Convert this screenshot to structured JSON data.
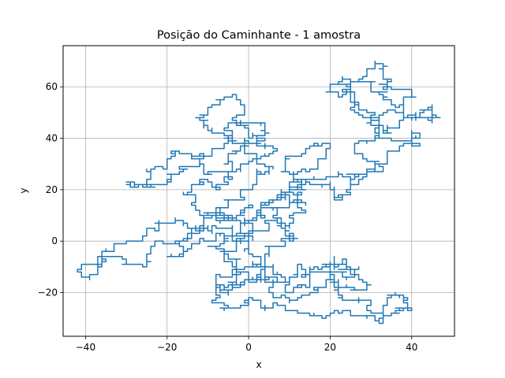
{
  "chart_data": {
    "type": "line",
    "title": "Posição do Caminhante - 1 amostra",
    "xlabel": "x",
    "ylabel": "y",
    "xlim": [
      -45.5,
      50.5
    ],
    "ylim": [
      -37,
      76
    ],
    "x_ticks": [
      -40,
      -20,
      0,
      20,
      40
    ],
    "y_ticks": [
      -20,
      0,
      20,
      40,
      60
    ],
    "x_tick_labels": [
      "−40",
      "−20",
      "0",
      "20",
      "40"
    ],
    "y_tick_labels": [
      "−20",
      "0",
      "20",
      "40",
      "60"
    ],
    "grid": true,
    "legend": "none",
    "series": [
      {
        "color": "#1f77b4",
        "style": "2D lattice random walk, unit steps (path approximated)",
        "waypoints": [
          [
            0,
            0
          ],
          [
            -4,
            6
          ],
          [
            -9,
            3
          ],
          [
            -14,
            5
          ],
          [
            -18,
            9
          ],
          [
            -22,
            7
          ],
          [
            -25,
            2
          ],
          [
            -30,
            0
          ],
          [
            -33,
            -4
          ],
          [
            -37,
            -9
          ],
          [
            -41,
            -14
          ],
          [
            -37,
            -10
          ],
          [
            -31,
            -6
          ],
          [
            -27,
            -9
          ],
          [
            -24,
            -5
          ],
          [
            -19,
            -1
          ],
          [
            -15,
            3
          ],
          [
            -11,
            8
          ],
          [
            -7,
            13
          ],
          [
            -3,
            10
          ],
          [
            1,
            14
          ],
          [
            -2,
            7
          ],
          [
            -6,
            2
          ],
          [
            -10,
            -2
          ],
          [
            -6,
            -7
          ],
          [
            -2,
            -12
          ],
          [
            -4,
            -18
          ],
          [
            -8,
            -23
          ],
          [
            -4,
            -26
          ],
          [
            0,
            -22
          ],
          [
            4,
            -27
          ],
          [
            9,
            -25
          ],
          [
            14,
            -28
          ],
          [
            19,
            -29
          ],
          [
            23,
            -27
          ],
          [
            27,
            -29
          ],
          [
            31,
            -31
          ],
          [
            36,
            -28
          ],
          [
            40,
            -26
          ],
          [
            38,
            -21
          ],
          [
            34,
            -25
          ],
          [
            30,
            -28
          ],
          [
            25,
            -23
          ],
          [
            22,
            -16
          ],
          [
            20,
            -10
          ],
          [
            23,
            -7
          ],
          [
            27,
            -11
          ],
          [
            24,
            -14
          ],
          [
            18,
            -12
          ],
          [
            13,
            -9
          ],
          [
            9,
            -14
          ],
          [
            6,
            -9
          ],
          [
            2,
            -13
          ],
          [
            4,
            -6
          ],
          [
            8,
            -2
          ],
          [
            12,
            1
          ],
          [
            9,
            6
          ],
          [
            6,
            10
          ],
          [
            10,
            13
          ],
          [
            13,
            18
          ],
          [
            10,
            22
          ],
          [
            14,
            27
          ],
          [
            17,
            31
          ],
          [
            19,
            36
          ],
          [
            16,
            38
          ],
          [
            12,
            33
          ],
          [
            9,
            28
          ],
          [
            11,
            23
          ],
          [
            14,
            20
          ],
          [
            18,
            24
          ],
          [
            22,
            27
          ],
          [
            25,
            22
          ],
          [
            28,
            26
          ],
          [
            31,
            30
          ],
          [
            34,
            34
          ],
          [
            38,
            37
          ],
          [
            42,
            38
          ],
          [
            40,
            42
          ],
          [
            35,
            40
          ],
          [
            32,
            44
          ],
          [
            30,
            50
          ],
          [
            27,
            54
          ],
          [
            25,
            59
          ],
          [
            28,
            63
          ],
          [
            29,
            67
          ],
          [
            31,
            70
          ],
          [
            33,
            64
          ],
          [
            37,
            59
          ],
          [
            40,
            56
          ],
          [
            38,
            52
          ],
          [
            34,
            50
          ],
          [
            30,
            46
          ],
          [
            33,
            42
          ],
          [
            37,
            46
          ],
          [
            41,
            50
          ],
          [
            44,
            52
          ],
          [
            45,
            46
          ],
          [
            42,
            48
          ],
          [
            38,
            52
          ],
          [
            35,
            55
          ],
          [
            31,
            58
          ],
          [
            27,
            62
          ],
          [
            23,
            64
          ],
          [
            20,
            61
          ],
          [
            22,
            56
          ],
          [
            26,
            52
          ],
          [
            30,
            48
          ],
          [
            32,
            42
          ],
          [
            29,
            38
          ],
          [
            26,
            34
          ],
          [
            30,
            31
          ],
          [
            33,
            28
          ],
          [
            29,
            25
          ],
          [
            25,
            22
          ],
          [
            21,
            18
          ],
          [
            17,
            22
          ],
          [
            13,
            24
          ],
          [
            9,
            19
          ],
          [
            5,
            14
          ],
          [
            2,
            10
          ],
          [
            -1,
            6
          ],
          [
            -5,
            8
          ],
          [
            -9,
            11
          ],
          [
            -13,
            14
          ],
          [
            -15,
            18
          ],
          [
            -12,
            22
          ],
          [
            -8,
            20
          ],
          [
            -4,
            24
          ],
          [
            -7,
            27
          ],
          [
            -11,
            30
          ],
          [
            -14,
            33
          ],
          [
            -17,
            35
          ],
          [
            -20,
            31
          ],
          [
            -23,
            28
          ],
          [
            -25,
            24
          ],
          [
            -21,
            22
          ],
          [
            -17,
            26
          ],
          [
            -13,
            29
          ],
          [
            -9,
            33
          ],
          [
            -6,
            36
          ],
          [
            -3,
            39
          ],
          [
            -7,
            42
          ],
          [
            -10,
            45
          ],
          [
            -12,
            48
          ],
          [
            -9,
            52
          ],
          [
            -6,
            55
          ],
          [
            -4,
            57
          ],
          [
            -2,
            53
          ],
          [
            -1,
            49
          ],
          [
            2,
            46
          ],
          [
            4,
            42
          ],
          [
            2,
            38
          ],
          [
            -2,
            35
          ],
          [
            -5,
            31
          ],
          [
            -3,
            27
          ],
          [
            0,
            30
          ],
          [
            3,
            33
          ],
          [
            6,
            36
          ],
          [
            4,
            40
          ],
          [
            0,
            44
          ],
          [
            -3,
            46
          ],
          [
            -6,
            43
          ],
          [
            -4,
            38
          ],
          [
            -1,
            34
          ],
          [
            2,
            30
          ],
          [
            5,
            26
          ],
          [
            2,
            22
          ],
          [
            -2,
            18
          ],
          [
            -5,
            14
          ],
          [
            -8,
            10
          ],
          [
            -11,
            6
          ],
          [
            -14,
            2
          ],
          [
            -17,
            -2
          ],
          [
            -20,
            -6
          ],
          [
            -16,
            -4
          ],
          [
            -12,
            -1
          ],
          [
            -8,
            3
          ],
          [
            -4,
            1
          ],
          [
            0,
            -3
          ],
          [
            3,
            -7
          ],
          [
            -1,
            -10
          ],
          [
            -5,
            -14
          ],
          [
            -8,
            -18
          ],
          [
            -5,
            -21
          ],
          [
            -1,
            -17
          ],
          [
            2,
            -13
          ],
          [
            6,
            -16
          ],
          [
            9,
            -20
          ],
          [
            12,
            -17
          ],
          [
            15,
            -13
          ],
          [
            18,
            -9
          ],
          [
            21,
            -6
          ],
          [
            24,
            -9
          ],
          [
            27,
            -13
          ],
          [
            29,
            -17
          ],
          [
            25,
            -19
          ],
          [
            21,
            -15
          ],
          [
            17,
            -18
          ],
          [
            13,
            -21
          ],
          [
            10,
            -24
          ],
          [
            6,
            -20
          ],
          [
            3,
            -16
          ],
          [
            0,
            -12
          ],
          [
            -3,
            -8
          ],
          [
            -6,
            -4
          ],
          [
            -3,
            0
          ],
          [
            1,
            4
          ],
          [
            5,
            8
          ],
          [
            8,
            5
          ],
          [
            11,
            8
          ],
          [
            14,
            11
          ],
          [
            11,
            15
          ],
          [
            7,
            18
          ],
          [
            4,
            15
          ],
          [
            2,
            11
          ],
          [
            0,
            7
          ],
          [
            -2,
            3
          ],
          [
            1,
            0
          ]
        ]
      }
    ]
  }
}
